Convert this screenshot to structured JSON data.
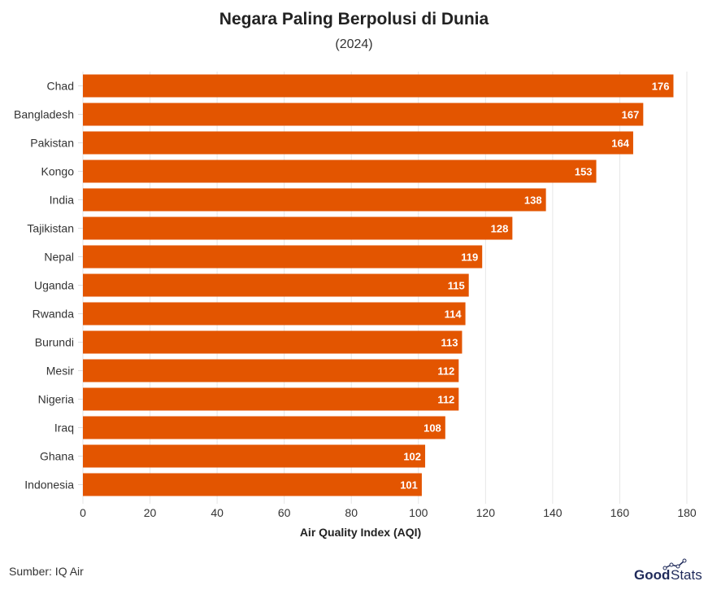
{
  "chart_data": {
    "type": "bar",
    "orientation": "horizontal",
    "title": "Negara Paling Berpolusi di Dunia",
    "subtitle": "(2024)",
    "xlabel": "Air Quality Index (AQI)",
    "ylabel": "",
    "xlim": [
      0,
      180
    ],
    "xticks": [
      0,
      20,
      40,
      60,
      80,
      100,
      120,
      140,
      160,
      180
    ],
    "grid": true,
    "categories": [
      "Chad",
      "Bangladesh",
      "Pakistan",
      "Kongo",
      "India",
      "Tajikistan",
      "Nepal",
      "Uganda",
      "Rwanda",
      "Burundi",
      "Mesir",
      "Nigeria",
      "Iraq",
      "Ghana",
      "Indonesia"
    ],
    "values": [
      176,
      167,
      164,
      153,
      138,
      128,
      119,
      115,
      114,
      113,
      112,
      112,
      108,
      102,
      101
    ],
    "bar_color": "#E35500",
    "data_labels": true
  },
  "footer": {
    "source": "Sumber: IQ Air",
    "logo": "GoodStats"
  }
}
